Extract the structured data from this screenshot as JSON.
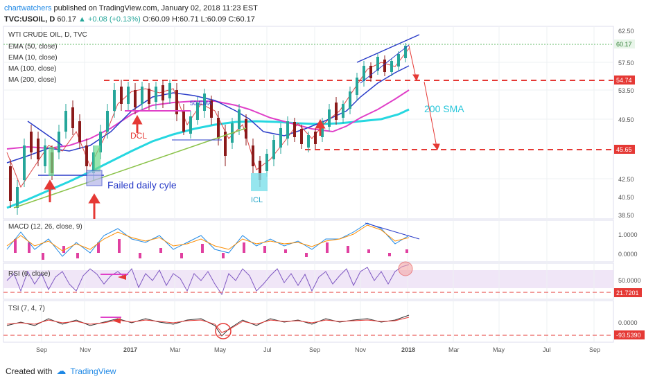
{
  "header": {
    "author": "chartwatchers",
    "published_text": "published on TradingView.com, January 02, 2018 11:23 EST",
    "symbol": "TVC:USOIL, D",
    "last": "60.17",
    "change": "+0.08 (+0.13%)",
    "ohlc": "O:60.09 H:60.71 L:60.09 C:60.17"
  },
  "legend": {
    "title": "WTI CRUDE OIL, D, TVC",
    "ema50": "EMA (50, close)",
    "ema10": "EMA (10, close)",
    "ma100": "MA (100, close)",
    "ma200": "MA (200, close)",
    "macd": "MACD (12, 26, close, 9)",
    "rsi": "RSI (6, close)",
    "tsi": "TSI (7, 4, 7)"
  },
  "annotations": {
    "failed": "Failed daily cyle",
    "dcl": "DCL",
    "icl": "ICL",
    "sma200": "200 SMA",
    "ema50": "50 EMA"
  },
  "price_axis": {
    "ticks": [
      "62.50",
      "57.50",
      "53.50",
      "49.50",
      "42.50",
      "40.50",
      "38.50"
    ],
    "last_label": "60.17",
    "level1": "54.74",
    "level2": "45.65"
  },
  "macd_axis": {
    "ticks": [
      "1.0000",
      "0.0000"
    ]
  },
  "rsi_axis": {
    "ticks": [
      "50.0000"
    ],
    "level": "21.7201"
  },
  "tsi_axis": {
    "ticks": [
      "0.0000"
    ],
    "level": "-93.5390"
  },
  "time_axis": [
    "Sep",
    "Nov",
    "2017",
    "Mar",
    "May",
    "Jul",
    "Sep",
    "Nov",
    "2018",
    "Mar",
    "May",
    "Jul",
    "Sep"
  ],
  "footer": {
    "created": "Created with",
    "brand": "TradingView"
  },
  "colors": {
    "candle_up": "#26a69a",
    "candle_down": "#8b1a1a",
    "ema50": "#2a3cc8",
    "ema10": "#d44",
    "ma100": "#e040c8",
    "ma200": "#26d7e0",
    "dashed": "#e53935",
    "trendline": "#8bc34a"
  }
}
